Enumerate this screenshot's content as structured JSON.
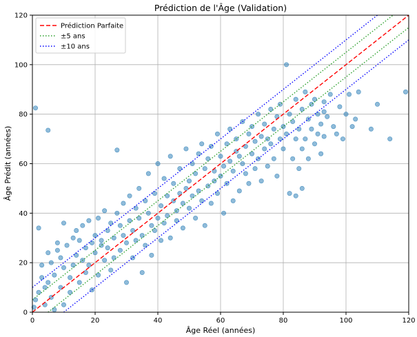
{
  "chart_data": {
    "type": "scatter",
    "title": "Prédiction de l'Âge (Validation)",
    "xlabel": "Âge Réel (années)",
    "ylabel": "Âge Prédit (années)",
    "xlim": [
      0,
      120
    ],
    "ylim": [
      0,
      120
    ],
    "xticks": [
      0,
      20,
      40,
      60,
      80,
      100,
      120
    ],
    "yticks": [
      0,
      20,
      40,
      60,
      80,
      100,
      120
    ],
    "grid": true,
    "legend_position": "top-left",
    "point_color": "#1f77b4",
    "point_alpha": 0.5,
    "series": [
      {
        "label": "",
        "points": [
          [
            1,
            82.5
          ],
          [
            5,
            73.5
          ],
          [
            0.5,
            2
          ],
          [
            1,
            5
          ],
          [
            2,
            8
          ],
          [
            2,
            34
          ],
          [
            3,
            14
          ],
          [
            3,
            19
          ],
          [
            4,
            3
          ],
          [
            4,
            10
          ],
          [
            5,
            12
          ],
          [
            5,
            24
          ],
          [
            6,
            6
          ],
          [
            6,
            20
          ],
          [
            7,
            1
          ],
          [
            7,
            15
          ],
          [
            8,
            25
          ],
          [
            8,
            28
          ],
          [
            9,
            10
          ],
          [
            9,
            22
          ],
          [
            10,
            3
          ],
          [
            10,
            36
          ],
          [
            10,
            18
          ],
          [
            11,
            27
          ],
          [
            12,
            8
          ],
          [
            12,
            14
          ],
          [
            13,
            19
          ],
          [
            13,
            30
          ],
          [
            14,
            23
          ],
          [
            14,
            33
          ],
          [
            15,
            12
          ],
          [
            15,
            29
          ],
          [
            16,
            21
          ],
          [
            16,
            35
          ],
          [
            17,
            16
          ],
          [
            17,
            26
          ],
          [
            18,
            37
          ],
          [
            18,
            19
          ],
          [
            19,
            28
          ],
          [
            19,
            9
          ],
          [
            20,
            24
          ],
          [
            20,
            31
          ],
          [
            21,
            15
          ],
          [
            21,
            38
          ],
          [
            22,
            27
          ],
          [
            22,
            29
          ],
          [
            23,
            21
          ],
          [
            23,
            41
          ],
          [
            24,
            33
          ],
          [
            24,
            26
          ],
          [
            25,
            17
          ],
          [
            25,
            36
          ],
          [
            26,
            30
          ],
          [
            26,
            22
          ],
          [
            27,
            40
          ],
          [
            27,
            65.5
          ],
          [
            28,
            25
          ],
          [
            28,
            35
          ],
          [
            29,
            44
          ],
          [
            29,
            31
          ],
          [
            30,
            12
          ],
          [
            30,
            28
          ],
          [
            31,
            37
          ],
          [
            31,
            47
          ],
          [
            32,
            33
          ],
          [
            32,
            22
          ],
          [
            33,
            42
          ],
          [
            33,
            29
          ],
          [
            34,
            50
          ],
          [
            34,
            38
          ],
          [
            35,
            16
          ],
          [
            35,
            31
          ],
          [
            36,
            45
          ],
          [
            36,
            27
          ],
          [
            37,
            56
          ],
          [
            37,
            40
          ],
          [
            38,
            35
          ],
          [
            38,
            23
          ],
          [
            39,
            48
          ],
          [
            39,
            33
          ],
          [
            40,
            38
          ],
          [
            40,
            60
          ],
          [
            41,
            43
          ],
          [
            41,
            29
          ],
          [
            42,
            54
          ],
          [
            42,
            36
          ],
          [
            43,
            47
          ],
          [
            43,
            39
          ],
          [
            44,
            63
          ],
          [
            44,
            30
          ],
          [
            45,
            45
          ],
          [
            45,
            52
          ],
          [
            46,
            41
          ],
          [
            46,
            37
          ],
          [
            47,
            58
          ],
          [
            47,
            48
          ],
          [
            48,
            34
          ],
          [
            48,
            44
          ],
          [
            49,
            66
          ],
          [
            49,
            50
          ],
          [
            50,
            53
          ],
          [
            50,
            42
          ],
          [
            51,
            47
          ],
          [
            51,
            60
          ],
          [
            52,
            38
          ],
          [
            52,
            56
          ],
          [
            53,
            64
          ],
          [
            53,
            49
          ],
          [
            54,
            45
          ],
          [
            54,
            68
          ],
          [
            55,
            58
          ],
          [
            55,
            35
          ],
          [
            56,
            51
          ],
          [
            56,
            62
          ],
          [
            57,
            67
          ],
          [
            57,
            44
          ],
          [
            58,
            57
          ],
          [
            58,
            53
          ],
          [
            59,
            72
          ],
          [
            59,
            48
          ],
          [
            60,
            63
          ],
          [
            60,
            55
          ],
          [
            61,
            59
          ],
          [
            61,
            40
          ],
          [
            62,
            68
          ],
          [
            62,
            52
          ],
          [
            63,
            74
          ],
          [
            63,
            61
          ],
          [
            64,
            57
          ],
          [
            64,
            45
          ],
          [
            65,
            65
          ],
          [
            65,
            70
          ],
          [
            66,
            49
          ],
          [
            66,
            63
          ],
          [
            67,
            60
          ],
          [
            67,
            77
          ],
          [
            68,
            56
          ],
          [
            68,
            67
          ],
          [
            69,
            72
          ],
          [
            69,
            52
          ],
          [
            70,
            64
          ],
          [
            70,
            75
          ],
          [
            71,
            58
          ],
          [
            71,
            69
          ],
          [
            72,
            80
          ],
          [
            72,
            62
          ],
          [
            73,
            53
          ],
          [
            73,
            71
          ],
          [
            74,
            66
          ],
          [
            74,
            76
          ],
          [
            75,
            59
          ],
          [
            75,
            70
          ],
          [
            76,
            82
          ],
          [
            76,
            68
          ],
          [
            77,
            62
          ],
          [
            77,
            74
          ],
          [
            78,
            55
          ],
          [
            78,
            79
          ],
          [
            79,
            70
          ],
          [
            79,
            84
          ],
          [
            80,
            66
          ],
          [
            80,
            75
          ],
          [
            81,
            100
          ],
          [
            81,
            72
          ],
          [
            82,
            48
          ],
          [
            82,
            80
          ],
          [
            83,
            62
          ],
          [
            83,
            77
          ],
          [
            84,
            86
          ],
          [
            84,
            70
          ],
          [
            85,
            74
          ],
          [
            85,
            58
          ],
          [
            86,
            82
          ],
          [
            86,
            66
          ],
          [
            87,
            70
          ],
          [
            87,
            89
          ],
          [
            88,
            78
          ],
          [
            88,
            62
          ],
          [
            89,
            84
          ],
          [
            89,
            74
          ],
          [
            90,
            68
          ],
          [
            90,
            86
          ],
          [
            91,
            72
          ],
          [
            91,
            80
          ],
          [
            92,
            76
          ],
          [
            92,
            64
          ],
          [
            93,
            85
          ],
          [
            93,
            71
          ],
          [
            94,
            79
          ],
          [
            95,
            88
          ],
          [
            96,
            75
          ],
          [
            98,
            83
          ],
          [
            99,
            70
          ],
          [
            100,
            80
          ],
          [
            101,
            88
          ],
          [
            102,
            75
          ],
          [
            103,
            78
          ],
          [
            104,
            89
          ],
          [
            108,
            74
          ],
          [
            114,
            70
          ],
          [
            119,
            89
          ],
          [
            110,
            84
          ],
          [
            97,
            72
          ],
          [
            93,
            81
          ],
          [
            86,
            50
          ],
          [
            84,
            47
          ]
        ]
      }
    ],
    "reference_lines": [
      {
        "label": "Prédiction Parfaite",
        "offset": 0,
        "color": "#ff0000",
        "style": "dashed"
      },
      {
        "label": "±5 ans",
        "offset": 5,
        "color": "#2ca02c",
        "style": "dotted"
      },
      {
        "label": "±10 ans",
        "offset": 10,
        "color": "#0000ff",
        "style": "dotted"
      }
    ]
  }
}
